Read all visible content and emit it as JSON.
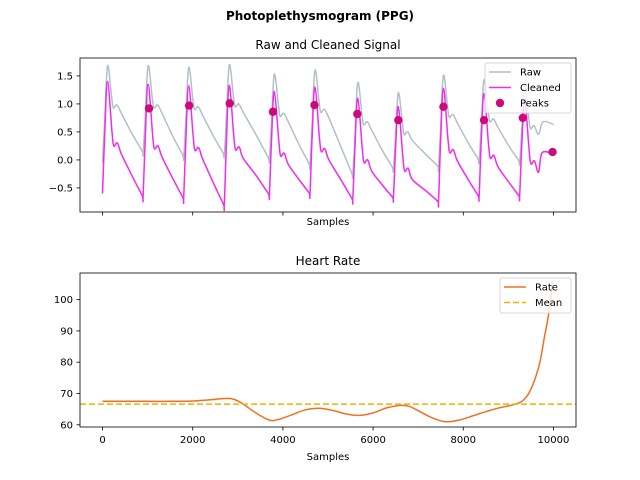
{
  "figure": {
    "suptitle": "Photoplethysmogram (PPG)"
  },
  "colors": {
    "raw": "#b2c0c8",
    "cleaned": "#f02cf0",
    "peaks": "#cc0a7a",
    "rate": "#f07022",
    "mean": "#f0b000"
  },
  "chart_data": [
    {
      "type": "line",
      "title": "Raw and Cleaned Signal",
      "xlabel": "Samples",
      "ylabel": "",
      "xlim": [
        -500,
        10500
      ],
      "ylim": [
        -0.93,
        1.82
      ],
      "xticks": [
        0,
        2000,
        4000,
        6000,
        8000,
        10000
      ],
      "xtick_labels_visible": false,
      "yticks": [
        -0.5,
        0.0,
        0.5,
        1.0,
        1.5
      ],
      "ytick_labels": [
        "−0.5",
        "0.0",
        "0.5",
        "1.0",
        "1.5"
      ],
      "legend": {
        "position": "upper-right",
        "entries": [
          "Raw",
          "Cleaned",
          "Peaks"
        ]
      },
      "beats": [
        {
          "start": 0,
          "min_raw": -0.05,
          "min_clean": -0.6
        },
        {
          "start": 900,
          "min_raw": 0.12,
          "min_clean": -0.65
        },
        {
          "start": 1800,
          "min_raw": 0.05,
          "min_clean": -0.68
        },
        {
          "start": 2700,
          "min_raw": 0.08,
          "min_clean": -0.8
        },
        {
          "start": 3700,
          "min_raw": 0.0,
          "min_clean": -0.62
        },
        {
          "start": 4600,
          "min_raw": -0.1,
          "min_clean": -0.6
        },
        {
          "start": 5550,
          "min_raw": -0.27,
          "min_clean": -0.7
        },
        {
          "start": 6450,
          "min_raw": -0.17,
          "min_clean": -0.68
        },
        {
          "start": 7450,
          "min_raw": -0.15,
          "min_clean": -0.75
        },
        {
          "start": 8350,
          "min_raw": -0.02,
          "min_clean": -0.65
        },
        {
          "start": 9250,
          "min_raw": -0.05,
          "min_clean": -0.65
        },
        {
          "end": 10000,
          "end_raw": 0.63,
          "end_clean": 0.1
        }
      ],
      "peaks_amp": {
        "raw": [
          1.68,
          1.68,
          1.65,
          1.7,
          1.53,
          1.6,
          1.38,
          1.2,
          1.51,
          1.43,
          1.31
        ],
        "clean": [
          1.4,
          1.35,
          1.32,
          1.33,
          1.22,
          1.3,
          1.1,
          0.95,
          1.28,
          1.18,
          1.08
        ]
      },
      "series": [
        {
          "name": "Peaks",
          "x": [
            1030,
            1920,
            2820,
            3780,
            4700,
            5650,
            6560,
            7560,
            8460,
            9320,
            9980
          ],
          "y": [
            0.92,
            0.97,
            1.01,
            0.86,
            0.98,
            0.82,
            0.71,
            0.95,
            0.71,
            0.75,
            0.14
          ]
        }
      ]
    },
    {
      "type": "line",
      "title": "Heart Rate",
      "xlabel": "Samples",
      "ylabel": "",
      "xlim": [
        -500,
        10500
      ],
      "ylim": [
        59.3,
        108.5
      ],
      "xticks": [
        0,
        2000,
        4000,
        6000,
        8000,
        10000
      ],
      "xtick_labels": [
        "0",
        "2000",
        "4000",
        "6000",
        "8000",
        "10000"
      ],
      "yticks": [
        60,
        70,
        80,
        90,
        100
      ],
      "ytick_labels": [
        "60",
        "70",
        "80",
        "90",
        "100"
      ],
      "legend": {
        "position": "upper-right",
        "entries": [
          "Rate",
          "Mean"
        ]
      },
      "series": [
        {
          "name": "Rate",
          "x": [
            0,
            500,
            1000,
            1500,
            2000,
            2400,
            2700,
            2900,
            3100,
            3400,
            3700,
            3900,
            4200,
            4500,
            4800,
            5100,
            5400,
            5700,
            6000,
            6300,
            6600,
            6800,
            7000,
            7300,
            7600,
            7900,
            8200,
            8500,
            8800,
            9100,
            9300,
            9450,
            9600,
            9700,
            9800,
            9900,
            9980
          ],
          "y": [
            67.5,
            67.5,
            67.5,
            67.5,
            67.6,
            68.0,
            68.4,
            68.2,
            66.8,
            63.8,
            61.5,
            61.7,
            63.2,
            64.8,
            65.3,
            64.6,
            63.5,
            63.0,
            63.8,
            65.4,
            66.2,
            65.9,
            64.5,
            62.3,
            61.0,
            61.5,
            62.8,
            64.2,
            65.4,
            66.4,
            67.5,
            70.0,
            75.0,
            80.0,
            88.0,
            96.0,
            106.0
          ]
        },
        {
          "name": "Mean",
          "value": 66.6
        }
      ]
    }
  ]
}
